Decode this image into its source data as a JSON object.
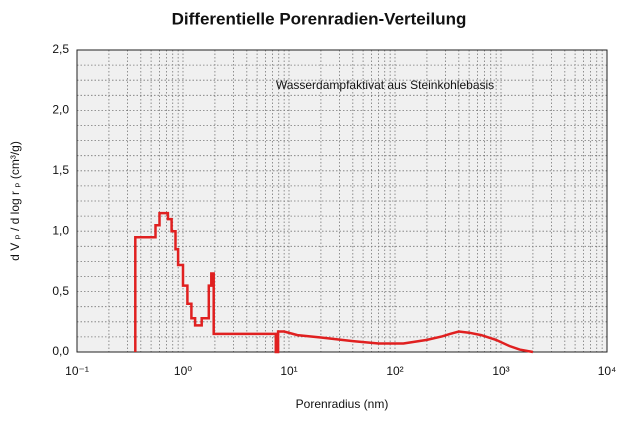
{
  "chart_data": {
    "type": "line",
    "title": "Differentielle Porenradien-Verteilung",
    "annotation": "Wasserdampfaktivat aus Steinkohlebasis",
    "xlabel": "Porenradius  (nm)",
    "ylabel": "d V ₚ / d log r ₚ (cm³/g)",
    "xscale": "log",
    "xlim": [
      0.1,
      10000
    ],
    "xticks": [
      {
        "value": 0.1,
        "label": "10⁻¹"
      },
      {
        "value": 1,
        "label": "10⁰"
      },
      {
        "value": 10,
        "label": "10¹"
      },
      {
        "value": 100,
        "label": "10²"
      },
      {
        "value": 1000,
        "label": "10³"
      },
      {
        "value": 10000,
        "label": "10⁴"
      }
    ],
    "ylim": [
      0,
      2.5
    ],
    "yticks": [
      {
        "value": 0,
        "label": "0,0"
      },
      {
        "value": 0.5,
        "label": "0,5"
      },
      {
        "value": 1,
        "label": "1,0"
      },
      {
        "value": 1.5,
        "label": "1,5"
      },
      {
        "value": 2,
        "label": "2,0"
      },
      {
        "value": 2.5,
        "label": "2,5"
      }
    ],
    "grid": true,
    "series": [
      {
        "color": "#e02020",
        "x": [
          0.355,
          0.355,
          0.55,
          0.55,
          0.6,
          0.6,
          0.72,
          0.72,
          0.78,
          0.78,
          0.85,
          0.85,
          0.9,
          0.9,
          1.0,
          1.0,
          1.1,
          1.1,
          1.2,
          1.2,
          1.3,
          1.3,
          1.5,
          1.5,
          1.75,
          1.75,
          1.85,
          1.85,
          1.95,
          1.95,
          7.5,
          7.5,
          7.9,
          7.9,
          9,
          12,
          20,
          40,
          70,
          120,
          200,
          280,
          330,
          400,
          500,
          650,
          900,
          1200,
          1500,
          2000
        ],
        "values": [
          0,
          0.95,
          0.95,
          1.05,
          1.05,
          1.15,
          1.15,
          1.1,
          1.1,
          1.0,
          1.0,
          0.85,
          0.85,
          0.72,
          0.72,
          0.55,
          0.55,
          0.4,
          0.4,
          0.28,
          0.28,
          0.22,
          0.22,
          0.28,
          0.28,
          0.55,
          0.55,
          0.65,
          0.65,
          0.15,
          0.15,
          0,
          0,
          0.17,
          0.17,
          0.14,
          0.12,
          0.09,
          0.07,
          0.07,
          0.1,
          0.13,
          0.15,
          0.17,
          0.16,
          0.14,
          0.1,
          0.05,
          0.02,
          0
        ]
      }
    ]
  }
}
